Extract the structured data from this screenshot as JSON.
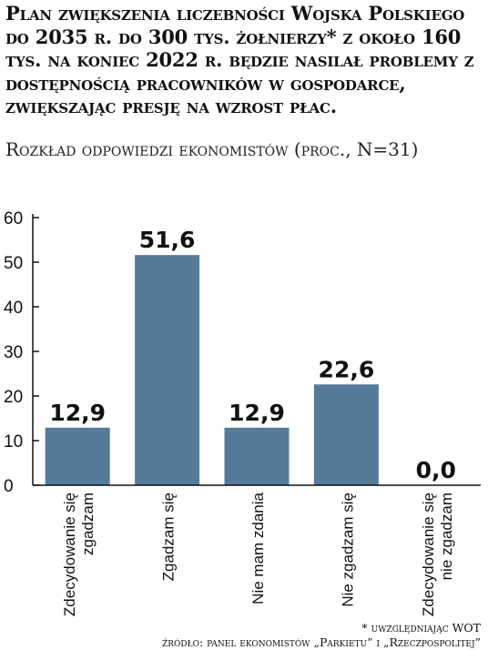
{
  "title": "Plan zwiększenia liczebności Wojska Polskiego do 2035 r. do 300 tys. żołnierzy* z około 160 tys. na koniec 2022 r. będzie nasilał problemy z dostępnością pracowników w gospodarce, zwiększając presję na wzrost płac.",
  "subtitle": "Rozkład odpowiedzi ekonomistów (proc., N=31)",
  "footnote": "* uwzględniając WOT",
  "source": "źródło: panel ekonomistów „Parkietu” i „Rzeczpospolitej”",
  "colors": {
    "bar": "#557a9a",
    "axis": "#111111",
    "text": "#111111"
  },
  "chart_data": {
    "type": "bar",
    "categories": [
      "Zdecydowanie się zgadzam",
      "Zgadzam się",
      "Nie mam zdania",
      "Nie zgadzam się",
      "Zdecydowanie się nie zgadzam"
    ],
    "category_lines": [
      [
        "Zdecydowanie się",
        "zgadzam"
      ],
      [
        "Zgadzam się"
      ],
      [
        "Nie mam zdania"
      ],
      [
        "Nie zgadzam się"
      ],
      [
        "Zdecydowanie się",
        "nie zgadzam"
      ]
    ],
    "values": [
      12.9,
      51.6,
      12.9,
      22.6,
      0.0
    ],
    "value_labels": [
      "12,9",
      "51,6",
      "12,9",
      "22,6",
      "0,0"
    ],
    "yticks": [
      0,
      10,
      20,
      30,
      40,
      50,
      60
    ],
    "ylim": [
      0,
      60
    ],
    "grid": false
  }
}
